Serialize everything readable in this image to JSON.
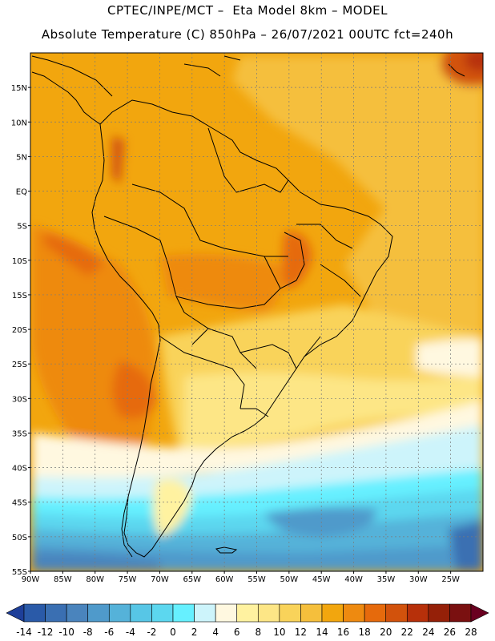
{
  "header": {
    "line1": "CPTEC/INPE/MCT –  Eta Model 8km – MODEL",
    "line2": "Absolute Temperature (C) 850hPa – 26/07/2021 00UTC fct=240h"
  },
  "map": {
    "region": "South America",
    "grid": "on",
    "lat_labels": [
      "15N",
      "10N",
      "5N",
      "EQ",
      "5S",
      "10S",
      "15S",
      "20S",
      "25S",
      "30S",
      "35S",
      "40S",
      "45S",
      "50S",
      "55S"
    ],
    "lon_labels": [
      "90W",
      "85W",
      "80W",
      "75W",
      "70W",
      "65W",
      "60W",
      "55W",
      "50W",
      "45W",
      "40W",
      "35W",
      "30W",
      "25W"
    ]
  },
  "colorbar": {
    "labels": [
      "-14",
      "-12",
      "-10",
      "-8",
      "-6",
      "-4",
      "-2",
      "0",
      "2",
      "4",
      "6",
      "8",
      "10",
      "12",
      "14",
      "16",
      "18",
      "20",
      "22",
      "24",
      "26",
      "28"
    ],
    "colors": [
      "#1e3f99",
      "#2a5aa8",
      "#3a6fb2",
      "#4a84bd",
      "#4f9acb",
      "#55b2d9",
      "#57c6e6",
      "#5cd7ef",
      "#66f0ff",
      "#cdf4fb",
      "#fff8e0",
      "#fff2a0",
      "#fde686",
      "#f9d35a",
      "#f5bf3c",
      "#f2a60e",
      "#ee8a10",
      "#e66a0c",
      "#d2520c",
      "#b7300a",
      "#952008",
      "#7a1010",
      "#6a0020"
    ]
  }
}
